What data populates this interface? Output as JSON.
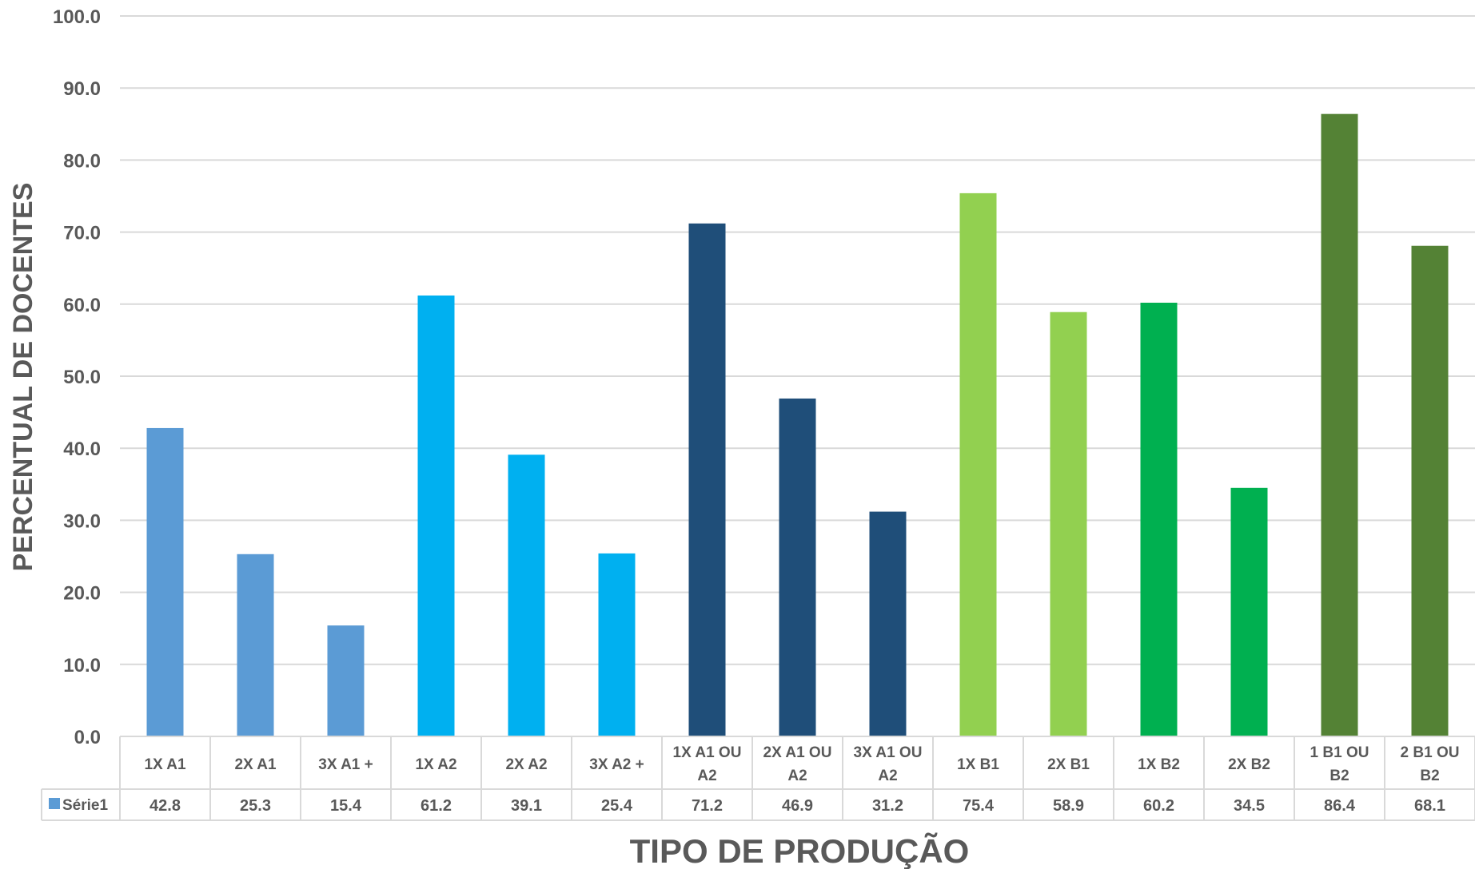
{
  "chart_data": {
    "type": "bar",
    "xlabel": "TIPO DE PRODUÇÃO",
    "ylabel": "PERCENTUAL DE DOCENTES",
    "ylim": [
      0,
      100
    ],
    "yticks": [
      "0.0",
      "10.0",
      "20.0",
      "30.0",
      "40.0",
      "50.0",
      "60.0",
      "70.0",
      "80.0",
      "90.0",
      "100.0"
    ],
    "grid": true,
    "data_table": true,
    "categories": [
      [
        "1X A1"
      ],
      [
        "2X A1"
      ],
      [
        "3X A1 +"
      ],
      [
        "1X A2"
      ],
      [
        "2X A2"
      ],
      [
        "3X A2 +"
      ],
      [
        "1X A1 OU",
        "A2"
      ],
      [
        "2X A1 OU",
        "A2"
      ],
      [
        "3X A1 OU",
        "A2"
      ],
      [
        "1X B1"
      ],
      [
        "2X B1"
      ],
      [
        "1X B2"
      ],
      [
        "2X B2"
      ],
      [
        "1 B1 OU",
        "B2"
      ],
      [
        "2 B1 OU",
        "B2"
      ]
    ],
    "series": [
      {
        "name": "Série1",
        "values": [
          42.8,
          25.3,
          15.4,
          61.2,
          39.1,
          25.4,
          71.2,
          46.9,
          31.2,
          75.4,
          58.9,
          60.2,
          34.5,
          86.4,
          68.1
        ],
        "value_labels": [
          "42.8",
          "25.3",
          "15.4",
          "61.2",
          "39.1",
          "25.4",
          "71.2",
          "46.9",
          "31.2",
          "75.4",
          "58.9",
          "60.2",
          "34.5",
          "86.4",
          "68.1"
        ],
        "colors": [
          "#5b9bd5",
          "#5b9bd5",
          "#5b9bd5",
          "#00b0f0",
          "#00b0f0",
          "#00b0f0",
          "#1f4e79",
          "#1f4e79",
          "#1f4e79",
          "#92d050",
          "#92d050",
          "#00b050",
          "#00b050",
          "#548235",
          "#548235"
        ],
        "legend_color": "#5b9bd5"
      }
    ]
  }
}
